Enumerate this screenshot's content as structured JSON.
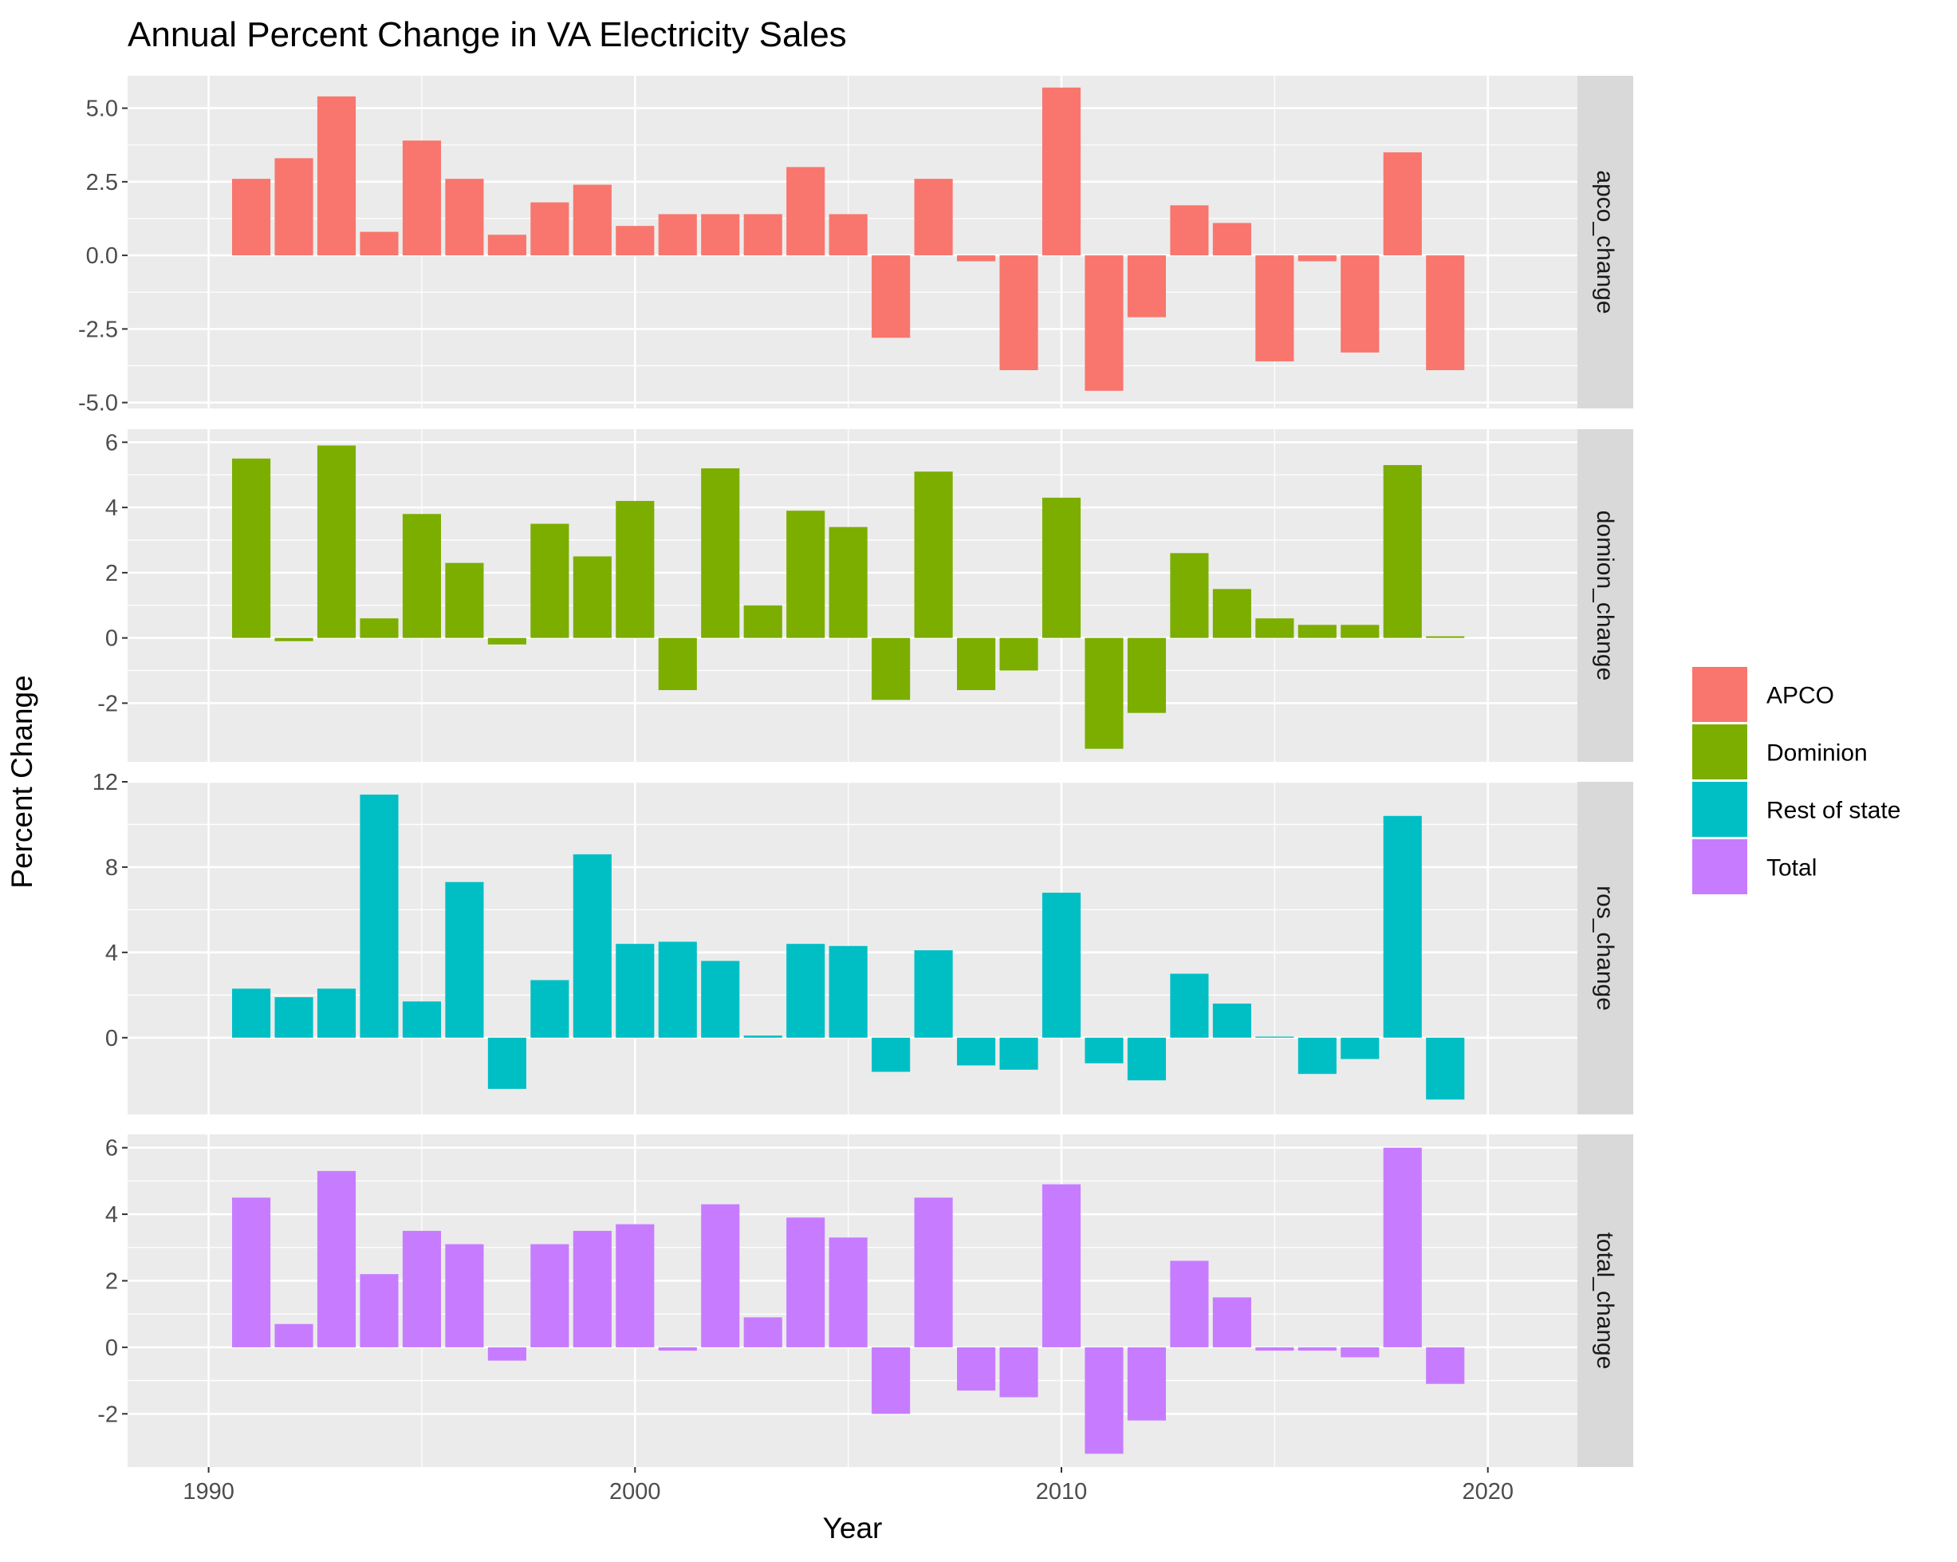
{
  "chart_data": {
    "type": "bar",
    "title": "Annual Percent Change in VA Electricity Sales",
    "xlabel": "Year",
    "ylabel": "Percent Change",
    "facets": "rows",
    "grid": true,
    "legend_placement": "right",
    "x": [
      1991,
      1992,
      1993,
      1994,
      1995,
      1996,
      1997,
      1998,
      1999,
      2000,
      2001,
      2002,
      2003,
      2004,
      2005,
      2006,
      2007,
      2008,
      2009,
      2010,
      2011,
      2012,
      2013,
      2014,
      2015,
      2016,
      2017,
      2018,
      2019
    ],
    "xlim": [
      1988.1,
      2022.1
    ],
    "x_ticks": [
      1990,
      2000,
      2010,
      2020
    ],
    "legend": [
      {
        "label": "APCO",
        "color": "#F8766D"
      },
      {
        "label": "Dominion",
        "color": "#7CAE00"
      },
      {
        "label": "Rest of state",
        "color": "#00BFC4"
      },
      {
        "label": "Total",
        "color": "#C77CFF"
      }
    ],
    "series": [
      {
        "strip": "apco_change",
        "color": "#F8766D",
        "ylim": [
          -5.2,
          6.1
        ],
        "y_ticks": [
          -5,
          -2.5,
          0,
          2.5,
          5
        ],
        "y_tick_labels": [
          "-5.0",
          "-2.5",
          "0.0",
          "2.5",
          "5.0"
        ],
        "values": [
          2.6,
          3.3,
          5.4,
          0.8,
          3.9,
          2.6,
          0.7,
          1.8,
          2.4,
          1.0,
          1.4,
          1.4,
          1.4,
          3.0,
          1.4,
          -2.8,
          2.6,
          -0.2,
          -3.9,
          5.7,
          -4.6,
          -2.1,
          1.7,
          1.1,
          -3.6,
          -0.2,
          -3.3,
          3.5,
          -3.9
        ]
      },
      {
        "strip": "domion_change",
        "color": "#7CAE00",
        "ylim": [
          -3.8,
          6.4
        ],
        "y_ticks": [
          -2,
          0,
          2,
          4,
          6
        ],
        "y_tick_labels": [
          "-2",
          "0",
          "2",
          "4",
          "6"
        ],
        "values": [
          5.5,
          -0.1,
          5.9,
          0.6,
          3.8,
          2.3,
          -0.2,
          3.5,
          2.5,
          4.2,
          -1.6,
          5.2,
          1.0,
          3.9,
          3.4,
          -1.9,
          5.1,
          -1.6,
          -1.0,
          4.3,
          -3.4,
          -2.3,
          2.6,
          1.5,
          0.6,
          0.4,
          0.4,
          5.3,
          0.05
        ]
      },
      {
        "strip": "ros_change",
        "color": "#00BFC4",
        "ylim": [
          -3.6,
          12.0
        ],
        "y_ticks": [
          0,
          4,
          8,
          12
        ],
        "y_tick_labels": [
          "0",
          "4",
          "8",
          "12"
        ],
        "values": [
          2.3,
          1.9,
          2.3,
          11.4,
          1.7,
          7.3,
          -2.4,
          2.7,
          8.6,
          4.4,
          4.5,
          3.6,
          0.1,
          4.4,
          4.3,
          -1.6,
          4.1,
          -1.3,
          -1.5,
          6.8,
          -1.2,
          -2.0,
          3.0,
          1.6,
          0.05,
          -1.7,
          -1.0,
          10.4,
          -2.9
        ]
      },
      {
        "strip": "total_change",
        "color": "#C77CFF",
        "ylim": [
          -3.6,
          6.4
        ],
        "y_ticks": [
          -2,
          0,
          2,
          4,
          6
        ],
        "y_tick_labels": [
          "-2",
          "0",
          "2",
          "4",
          "6"
        ],
        "values": [
          4.5,
          0.7,
          5.3,
          2.2,
          3.5,
          3.1,
          -0.4,
          3.1,
          3.5,
          3.7,
          -0.1,
          4.3,
          0.9,
          3.9,
          3.3,
          -2.0,
          4.5,
          -1.3,
          -1.5,
          4.9,
          -3.2,
          -2.2,
          2.6,
          1.5,
          -0.1,
          -0.1,
          -0.3,
          6.0,
          -1.1
        ]
      }
    ]
  }
}
